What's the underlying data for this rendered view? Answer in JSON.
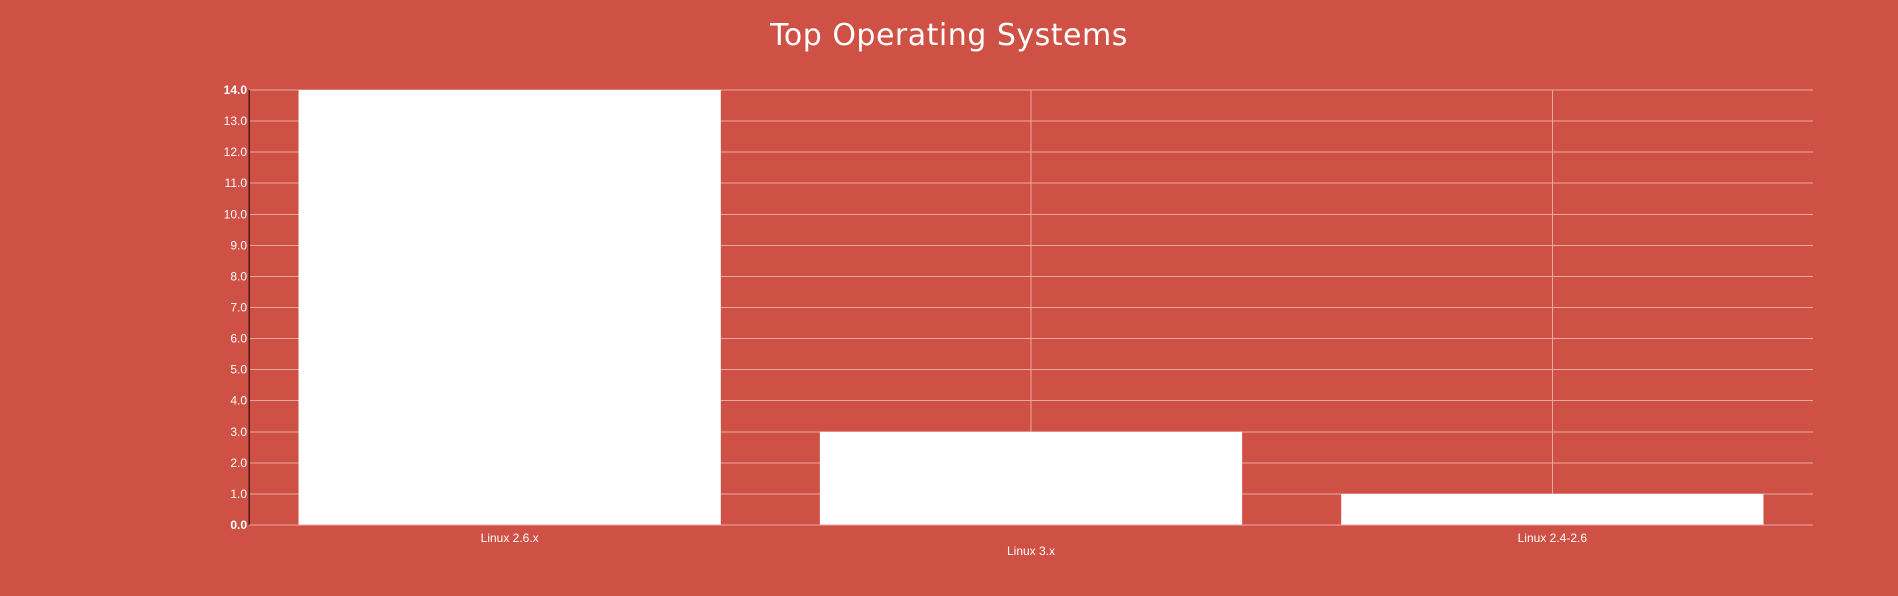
{
  "colors": {
    "background": "#cf5045",
    "bar": "#ffffff",
    "grid": "#e8a7a1",
    "text": "#ffffff"
  },
  "chart_data": {
    "type": "bar",
    "title": "Top Operating Systems",
    "categories": [
      "Linux 2.6.x",
      "Linux 3.x",
      "Linux 2.4-2.6"
    ],
    "values": [
      14,
      3,
      1
    ],
    "xlabel": "",
    "ylabel": "",
    "ylim": [
      0,
      14
    ],
    "yticks": [
      "0.0",
      "1.0",
      "2.0",
      "3.0",
      "4.0",
      "5.0",
      "6.0",
      "7.0",
      "8.0",
      "9.0",
      "10.0",
      "11.0",
      "12.0",
      "13.0",
      "14.0"
    ],
    "grid": true,
    "legend": "none"
  }
}
